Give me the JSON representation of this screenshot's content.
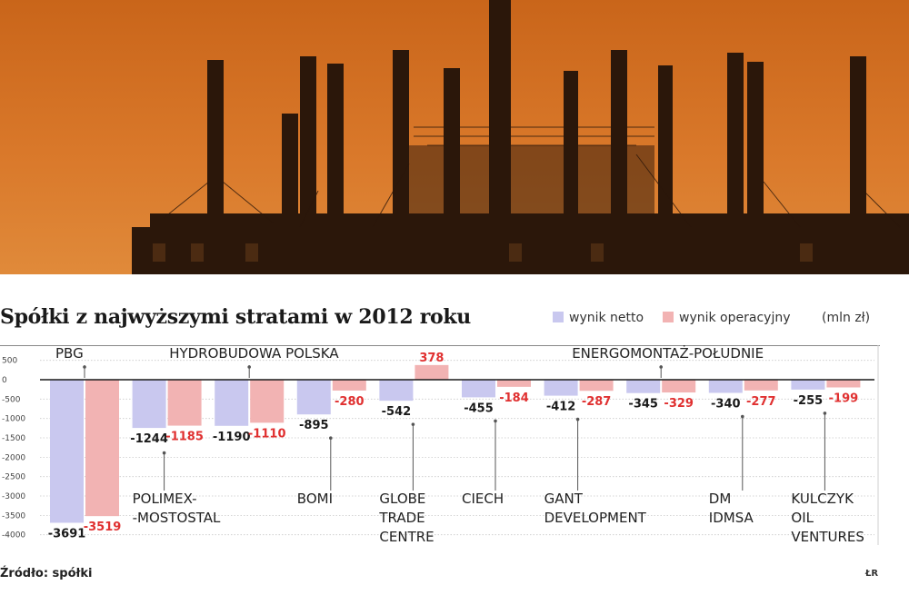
{
  "chart_data": {
    "type": "bar",
    "title": "Spółki z najwyższymi stratami w 2012 roku",
    "unit": "(mln zł)",
    "source": "Źródło: spółki",
    "credit": "ŁR",
    "legend": [
      "wynik netto",
      "wynik operacyjny"
    ],
    "colors": {
      "netto": "#c9c8ef",
      "operacyjny": "#f2b3b3",
      "operacyjny_label": "#e03030",
      "netto_label": "#1a1a1a"
    },
    "ylim": [
      -4250,
      500
    ],
    "yticks": [
      500,
      0,
      -500,
      -1000,
      -1500,
      -2000,
      -2500,
      -3000,
      -3500,
      -4000
    ],
    "grid": true,
    "categories": [
      "PBG",
      "POLIMEX-MOSTOSTAL",
      "HYDROBUDOWA POLSKA",
      "BOMI",
      "GLOBE TRADE CENTRE",
      "CIECH",
      "GANT DEVELOPMENT",
      "ENERGOMONTAŻ-POŁUDNIE",
      "DM IDMSA",
      "KULCZYK OIL VENTURES"
    ],
    "category_label_lines": [
      [
        "PBG"
      ],
      [
        "POLIMEX-",
        "-MOSTOSTAL"
      ],
      [
        "HYDROBUDOWA POLSKA"
      ],
      [
        "BOMI"
      ],
      [
        "GLOBE",
        "TRADE",
        "CENTRE"
      ],
      [
        "CIECH"
      ],
      [
        "GANT",
        "DEVELOPMENT"
      ],
      [
        "ENERGOMONTAŻ-POŁUDNIE"
      ],
      [
        "DM",
        "IDMSA"
      ],
      [
        "KULCZYK",
        "OIL",
        "VENTURES"
      ]
    ],
    "label_position": [
      "top",
      "bottom",
      "top",
      "bottom",
      "bottom",
      "bottom",
      "bottom",
      "top",
      "bottom",
      "bottom"
    ],
    "series": [
      {
        "name": "wynik netto",
        "values": [
          -3691,
          -1244,
          -1190,
          -895,
          -542,
          -455,
          -412,
          -345,
          -340,
          -255
        ],
        "labels": [
          "-3691",
          "-1244",
          "-1190",
          "-895",
          "-542",
          "-455",
          "-412",
          "-345",
          "-340",
          "-255"
        ]
      },
      {
        "name": "wynik operacyjny",
        "values": [
          -3519,
          -1185,
          -1110,
          -280,
          378,
          -184,
          -287,
          -329,
          -277,
          -199
        ],
        "labels": [
          "-3519",
          "-1185",
          "-1110",
          "-280",
          "378",
          "-184",
          "-287",
          "-329",
          "-277",
          "-199"
        ]
      }
    ]
  }
}
